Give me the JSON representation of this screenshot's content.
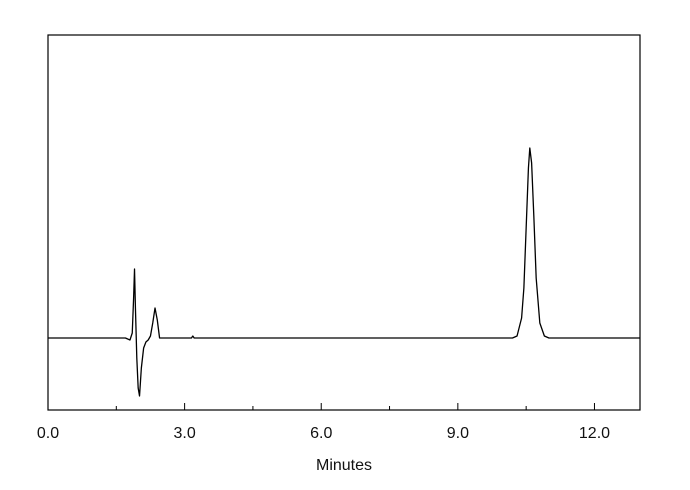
{
  "chart_data": {
    "type": "line",
    "x_label": "Minutes",
    "x": [
      0,
      1.7,
      1.8,
      1.85,
      1.88,
      1.9,
      1.92,
      1.95,
      1.98,
      2.01,
      2.05,
      2.1,
      2.15,
      2.2,
      2.25,
      2.3,
      2.35,
      2.4,
      2.45,
      2.55,
      3.15,
      3.18,
      3.21,
      3.3,
      10.2,
      10.3,
      10.4,
      10.45,
      10.5,
      10.55,
      10.58,
      10.62,
      10.67,
      10.72,
      10.8,
      10.9,
      11.0,
      13.0
    ],
    "series": [
      {
        "color": "#000000",
        "values": [
          0,
          0,
          -2,
          5,
          40,
          69,
          30,
          -20,
          -50,
          -58,
          -30,
          -10,
          -4,
          -2,
          2,
          15,
          30,
          18,
          0,
          0,
          0,
          2,
          0,
          0,
          0,
          2,
          20,
          50,
          110,
          170,
          190,
          175,
          120,
          60,
          15,
          2,
          0,
          0
        ]
      }
    ],
    "xlim": [
      0,
      13
    ],
    "xticks": [
      {
        "value": 0,
        "label": "0.0"
      },
      {
        "value": 3,
        "label": "3.0"
      },
      {
        "value": 6,
        "label": "6.0"
      },
      {
        "value": 9,
        "label": "9.0"
      },
      {
        "value": 12,
        "label": "12.0"
      }
    ],
    "xminorticks": [
      1.5,
      4.5,
      7.5,
      10.5
    ],
    "ylim": [
      -72,
      303
    ]
  }
}
